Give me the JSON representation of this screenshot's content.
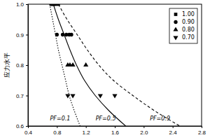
{
  "chart_data": {
    "type": "scatter",
    "y_label": "应力水平",
    "xlim": [
      0.4,
      2.8
    ],
    "ylim": [
      0.6,
      1.0
    ],
    "xticks": [
      0.4,
      0.8,
      1.2,
      1.6,
      {
        "value": 2.0,
        "label": "2.0"
      },
      2.4,
      2.8
    ],
    "yticks": [
      0.6,
      0.7,
      0.8,
      0.9,
      {
        "value": 1.0,
        "label": "1.0"
      }
    ],
    "legend": "upper right",
    "series": [
      {
        "name": "1.00",
        "type": "scatter",
        "marker": "square",
        "color": "#000000",
        "x": [
          0.72,
          0.74,
          0.76,
          0.78,
          0.82
        ],
        "values": [
          1.0,
          1.0,
          1.0,
          1.0,
          1.0
        ]
      },
      {
        "name": "0.90",
        "type": "scatter",
        "marker": "circle",
        "color": "#000000",
        "x": [
          0.8,
          0.88,
          0.93,
          0.97,
          1.0
        ],
        "values": [
          0.9,
          0.9,
          0.9,
          0.9,
          0.9
        ]
      },
      {
        "name": "0.80",
        "type": "scatter",
        "marker": "triangle-up",
        "color": "#000000",
        "x": [
          0.95,
          0.98,
          1.02,
          1.2
        ],
        "values": [
          0.8,
          0.8,
          0.8,
          0.8
        ]
      },
      {
        "name": "0.70",
        "type": "scatter",
        "marker": "triangle-down",
        "color": "#000000",
        "x": [
          0.95,
          1.02,
          1.4,
          1.6
        ],
        "values": [
          0.7,
          0.7,
          0.7,
          0.7
        ]
      },
      {
        "name": "PF=0.1",
        "type": "line",
        "line_style": "dotted",
        "color": "#000000",
        "x": [
          0.7,
          0.74,
          0.78,
          0.82,
          0.87,
          0.92,
          0.97,
          1.04,
          1.12
        ],
        "values": [
          1.0,
          0.95,
          0.9,
          0.85,
          0.8,
          0.75,
          0.7,
          0.65,
          0.6
        ]
      },
      {
        "name": "PF=0.5",
        "type": "line",
        "line_style": "solid",
        "color": "#000000",
        "x": [
          0.75,
          0.82,
          0.9,
          0.98,
          1.07,
          1.18,
          1.33,
          1.52,
          1.75
        ],
        "values": [
          1.0,
          0.95,
          0.9,
          0.85,
          0.8,
          0.75,
          0.7,
          0.65,
          0.6
        ]
      },
      {
        "name": "PF=0.9",
        "type": "line",
        "line_style": "dashed",
        "color": "#000000",
        "x": [
          0.82,
          0.94,
          1.08,
          1.22,
          1.38,
          1.58,
          1.85,
          2.15,
          2.5
        ],
        "values": [
          1.0,
          0.95,
          0.9,
          0.85,
          0.8,
          0.75,
          0.7,
          0.65,
          0.6
        ]
      }
    ]
  }
}
